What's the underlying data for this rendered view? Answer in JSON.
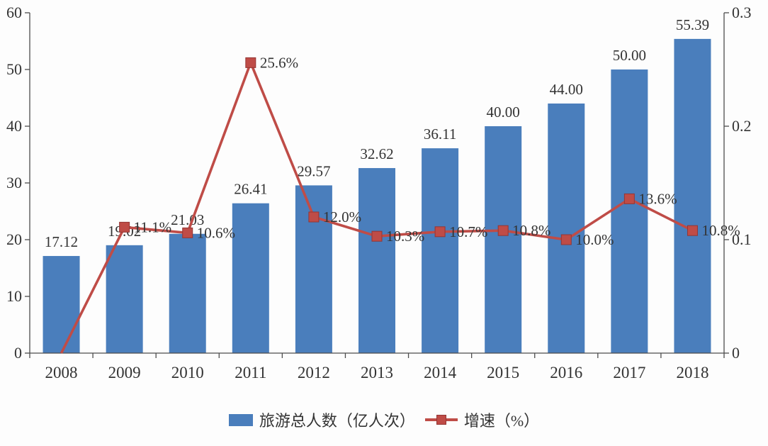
{
  "chart_data": {
    "type": "bar+line",
    "title": "",
    "categories": [
      "2008",
      "2009",
      "2010",
      "2011",
      "2012",
      "2013",
      "2014",
      "2015",
      "2016",
      "2017",
      "2018"
    ],
    "series": [
      {
        "name": "旅游总人数（亿人次）",
        "type": "bar",
        "axis": "left",
        "color": "#4a7ebc",
        "values": [
          17.12,
          19.02,
          21.03,
          26.41,
          29.57,
          32.62,
          36.11,
          40.0,
          44.0,
          50.0,
          55.39
        ],
        "labels": [
          "17.12",
          "19.02",
          "21.03",
          "26.41",
          "29.57",
          "32.62",
          "36.11",
          "40.00",
          "44.00",
          "50.00",
          "55.39"
        ]
      },
      {
        "name": "增速（%）",
        "type": "line",
        "axis": "right",
        "color": "#bf4c47",
        "marker": "square",
        "values": [
          0,
          0.111,
          0.106,
          0.256,
          0.12,
          0.103,
          0.107,
          0.108,
          0.1,
          0.136,
          0.108
        ],
        "labels": [
          "",
          "11.1%",
          "10.6%",
          "25.6%",
          "12.0%",
          "10.3%",
          "10.7%",
          "10.8%",
          "10.0%",
          "13.6%",
          "10.8%"
        ]
      }
    ],
    "left_axis": {
      "min": 0,
      "max": 60,
      "ticks": [
        "60",
        "50",
        "40",
        "30",
        "20",
        "10",
        "0"
      ]
    },
    "right_axis": {
      "min": 0,
      "max": 0.3,
      "ticks": [
        "0.3",
        "0.2",
        "0.1",
        "0"
      ]
    },
    "grid": "off",
    "legend_position": "bottom",
    "text_color": "#333333",
    "axis_color": "#4d4d4d",
    "background_color": "#fdfdfd"
  }
}
